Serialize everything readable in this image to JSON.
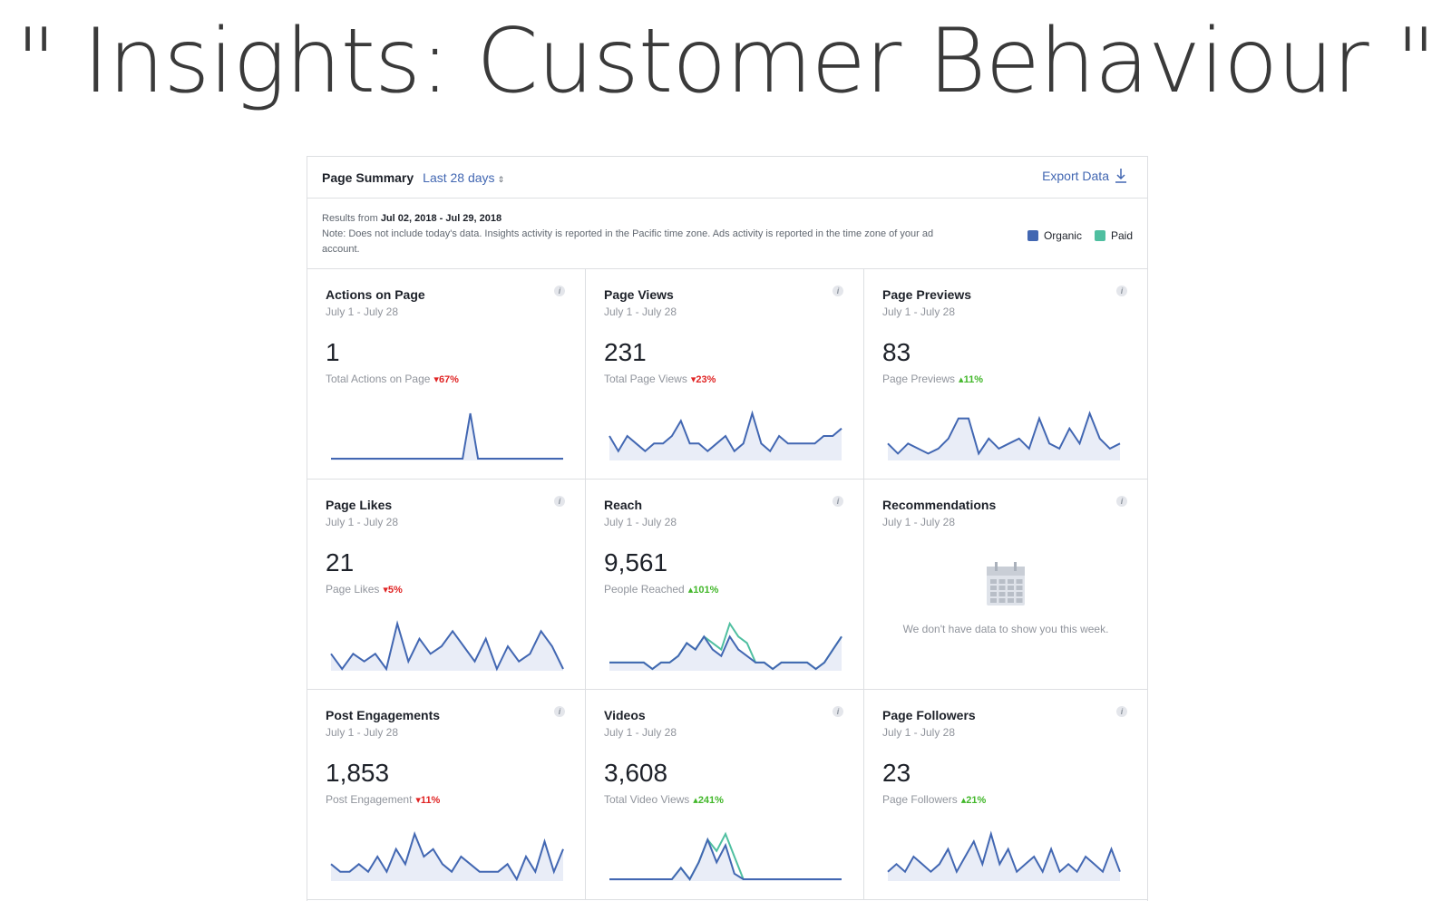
{
  "slide": {
    "title": "\" Insights: Customer Behaviour \""
  },
  "header": {
    "title": "Page Summary",
    "range_label": "Last 28 days",
    "range_caret": "⇕",
    "export_label": "Export Data"
  },
  "notes": {
    "results_prefix": "Results from",
    "results_range": "Jul 02, 2018 - Jul 29, 2018",
    "note": "Note: Does not include today's data. Insights activity is reported in the Pacific time zone. Ads activity is reported in the time zone of your ad account."
  },
  "legend": {
    "organic_label": "Organic",
    "paid_label": "Paid",
    "organic_color": "#4267b2",
    "paid_color": "#4fbfa0"
  },
  "cards": [
    {
      "title": "Actions on Page",
      "dates": "July 1 - July 28",
      "value": "1",
      "sub": "Total Actions on Page",
      "change": "▾67%",
      "dir": "down",
      "organic": [
        0,
        0,
        0,
        0,
        0,
        0,
        0,
        0,
        0,
        0,
        0,
        0,
        0,
        0,
        0,
        0,
        0,
        0,
        10,
        0,
        0,
        0,
        0,
        0,
        0,
        0,
        0,
        0,
        0,
        0,
        0
      ],
      "paid": null
    },
    {
      "title": "Page Views",
      "dates": "July 1 - July 28",
      "value": "231",
      "sub": "Total Page Views",
      "change": "▾23%",
      "dir": "down",
      "organic": [
        3,
        1,
        3,
        2,
        1,
        2,
        2,
        3,
        5,
        2,
        2,
        1,
        2,
        3,
        1,
        2,
        6,
        2,
        1,
        3,
        2,
        2,
        2,
        2,
        3,
        3,
        4
      ],
      "paid": null
    },
    {
      "title": "Page Previews",
      "dates": "July 1 - July 28",
      "value": "83",
      "sub": "Page Previews",
      "change": "▴11%",
      "dir": "up",
      "organic": [
        3,
        1,
        3,
        2,
        1,
        2,
        4,
        8,
        8,
        1,
        4,
        2,
        3,
        4,
        2,
        8,
        3,
        2,
        6,
        3,
        9,
        4,
        2,
        3
      ],
      "paid": null
    },
    {
      "title": "Page Likes",
      "dates": "July 1 - July 28",
      "value": "21",
      "sub": "Page Likes",
      "change": "▾5%",
      "dir": "down",
      "organic": [
        2,
        0,
        2,
        1,
        2,
        0,
        6,
        1,
        4,
        2,
        3,
        5,
        3,
        1,
        4,
        0,
        3,
        1,
        2,
        5,
        3,
        0
      ],
      "paid": null
    },
    {
      "title": "Reach",
      "dates": "July 1 - July 28",
      "value": "9,561",
      "sub": "People Reached",
      "change": "▴101%",
      "dir": "up",
      "organic": [
        1,
        1,
        1,
        1,
        1,
        0,
        1,
        1,
        2,
        4,
        3,
        5,
        3,
        2,
        5,
        3,
        2,
        1,
        1,
        0,
        1,
        1,
        1,
        1,
        0,
        1,
        3,
        5
      ],
      "paid": [
        1,
        1,
        1,
        1,
        1,
        0,
        1,
        1,
        2,
        4,
        3,
        5,
        4,
        3,
        7,
        5,
        4,
        1,
        1,
        0,
        1,
        1,
        1,
        1,
        0,
        1,
        3,
        5
      ]
    },
    {
      "title": "Recommendations",
      "dates": "July 1 - July 28",
      "empty": true,
      "empty_text": "We don't have data to show you this week."
    },
    {
      "title": "Post Engagements",
      "dates": "July 1 - July 28",
      "value": "1,853",
      "sub": "Post Engagement",
      "change": "▾11%",
      "dir": "down",
      "organic": [
        2,
        1,
        1,
        2,
        1,
        3,
        1,
        4,
        2,
        6,
        3,
        4,
        2,
        1,
        3,
        2,
        1,
        1,
        1,
        2,
        0,
        3,
        1,
        5,
        1,
        4
      ],
      "paid": null
    },
    {
      "title": "Videos",
      "dates": "July 1 - July 28",
      "value": "3,608",
      "sub": "Total Video Views",
      "change": "▴241%",
      "dir": "up",
      "organic": [
        0,
        0,
        0,
        0,
        0,
        0,
        0,
        0,
        2,
        0,
        3,
        7,
        3,
        6,
        1,
        0,
        0,
        0,
        0,
        0,
        0,
        0,
        0,
        0,
        0,
        0,
        0
      ],
      "paid": [
        0,
        0,
        0,
        0,
        0,
        0,
        0,
        0,
        2,
        0,
        3,
        7,
        5,
        8,
        4,
        0,
        0,
        0,
        0,
        0,
        0,
        0,
        0,
        0,
        0,
        0,
        0
      ]
    },
    {
      "title": "Page Followers",
      "dates": "July 1 - July 28",
      "value": "23",
      "sub": "Page Followers",
      "change": "▴21%",
      "dir": "up",
      "organic": [
        1,
        2,
        1,
        3,
        2,
        1,
        2,
        4,
        1,
        3,
        5,
        2,
        6,
        2,
        4,
        1,
        2,
        3,
        1,
        4,
        1,
        2,
        1,
        3,
        2,
        1,
        4,
        1
      ],
      "paid": null
    }
  ]
}
